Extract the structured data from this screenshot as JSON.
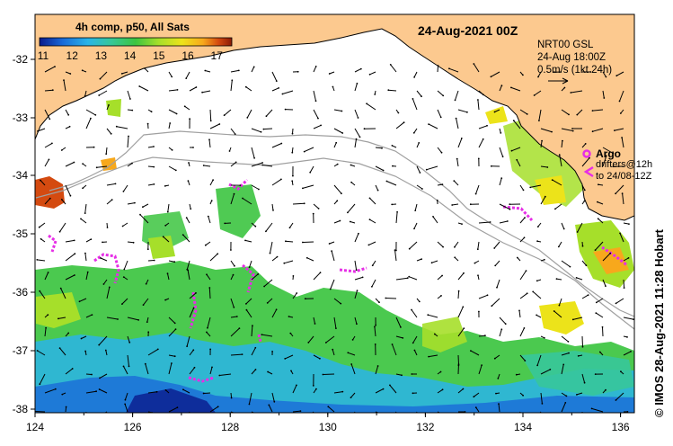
{
  "map": {
    "date_title": "24-Aug-2021 00Z",
    "x_ticks": [
      "124",
      "126",
      "128",
      "130",
      "132",
      "134",
      "136"
    ],
    "y_ticks": [
      "-32",
      "-33",
      "-34",
      "-35",
      "-36",
      "-37",
      "-38"
    ],
    "colorbar": {
      "title": "4h comp, p50, All Sats",
      "ticks": [
        "11",
        "12",
        "13",
        "14",
        "15",
        "16",
        "17"
      ],
      "colors": [
        "#0a1a8c",
        "#1a6ad8",
        "#2ab4e8",
        "#37c79a",
        "#3cc440",
        "#a6df2a",
        "#ece31a",
        "#f7a81c",
        "#d44a10",
        "#8a1a06"
      ]
    },
    "current_legend": {
      "line1": "NRT00 GSL",
      "line2": "24-Aug 18:00Z",
      "line3": "0.5m/s (1kt 24h)"
    },
    "argo_legend": {
      "title": "Argo",
      "line1": "drifters@12h",
      "line2": "to 24/08-12Z"
    },
    "credit": "© IMOS 28-Aug-2021 11:28 Hobart",
    "colors": {
      "land": "#fcc98f",
      "argo": "#e62ee6",
      "isobath": "#a0a0a0"
    }
  }
}
